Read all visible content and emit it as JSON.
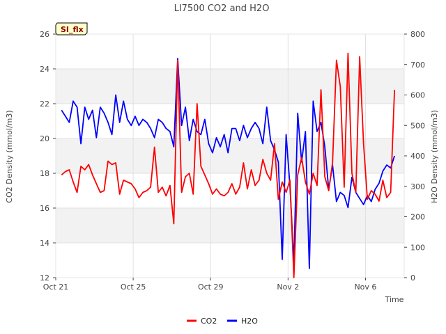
{
  "chart_data": {
    "type": "line",
    "title": "LI7500 CO2 and H2O",
    "badge": "SI_flx",
    "xlabel": "Time",
    "ylabel": "CO2 Density (mmol/m3)",
    "y2label": "H2O Density (mmol/m3)",
    "xlim": [
      0,
      18
    ],
    "x_tick_values": [
      0,
      4,
      8,
      12,
      16
    ],
    "x_tick_labels": [
      "Oct 21",
      "Oct 25",
      "Oct 29",
      "Nov 2",
      "Nov 6"
    ],
    "ylim": [
      12,
      26
    ],
    "y_ticks": [
      12,
      14,
      16,
      18,
      20,
      22,
      24,
      26
    ],
    "y2lim": [
      0,
      800
    ],
    "y2_ticks": [
      0,
      100,
      200,
      300,
      400,
      500,
      600,
      700,
      800
    ],
    "grid": true,
    "legend_position": "bottom-center",
    "series": [
      {
        "name": "CO2",
        "axis": "left",
        "color": "#ff0000",
        "x": [
          0.3,
          0.5,
          0.7,
          0.9,
          1.1,
          1.3,
          1.5,
          1.7,
          1.9,
          2.1,
          2.3,
          2.5,
          2.7,
          2.9,
          3.1,
          3.3,
          3.5,
          3.7,
          3.9,
          4.1,
          4.3,
          4.5,
          4.7,
          4.9,
          5.1,
          5.3,
          5.5,
          5.7,
          5.9,
          6.1,
          6.3,
          6.5,
          6.7,
          6.9,
          7.1,
          7.3,
          7.5,
          7.7,
          7.9,
          8.1,
          8.3,
          8.5,
          8.7,
          8.9,
          9.1,
          9.3,
          9.5,
          9.7,
          9.9,
          10.1,
          10.3,
          10.5,
          10.7,
          10.9,
          11.1,
          11.3,
          11.5,
          11.7,
          11.9,
          12.1,
          12.3,
          12.5,
          12.7,
          12.9,
          13.1,
          13.3,
          13.5,
          13.7,
          13.9,
          14.1,
          14.3,
          14.5,
          14.7,
          14.9,
          15.1,
          15.3,
          15.5,
          15.7,
          15.9,
          16.1,
          16.3,
          16.5,
          16.7,
          16.9,
          17.1,
          17.3,
          17.5
        ],
        "values": [
          17.9,
          18.1,
          18.2,
          17.5,
          16.9,
          18.4,
          18.2,
          18.5,
          17.9,
          17.4,
          16.9,
          17.0,
          18.7,
          18.5,
          18.6,
          16.8,
          17.6,
          17.5,
          17.4,
          17.1,
          16.6,
          16.9,
          17.0,
          17.2,
          19.5,
          16.9,
          17.2,
          16.7,
          17.3,
          15.1,
          24.5,
          16.9,
          17.8,
          18.0,
          16.8,
          22.0,
          18.4,
          17.9,
          17.4,
          16.8,
          17.1,
          16.8,
          16.7,
          16.9,
          17.4,
          16.8,
          17.2,
          18.6,
          17.1,
          18.2,
          17.3,
          17.6,
          18.8,
          18.0,
          17.6,
          19.7,
          16.5,
          17.5,
          16.9,
          17.6,
          12.0,
          17.9,
          18.9,
          17.5,
          16.8,
          18.0,
          17.3,
          22.8,
          17.8,
          17.0,
          18.6,
          24.5,
          23.0,
          17.2,
          24.9,
          18.0,
          16.9,
          24.7,
          19.7,
          16.5,
          17.0,
          16.8,
          16.4,
          17.6,
          16.6,
          16.9,
          22.8
        ]
      },
      {
        "name": "H2O",
        "axis": "right",
        "color": "#0000ff",
        "x": [
          0.3,
          0.5,
          0.7,
          0.9,
          1.1,
          1.3,
          1.5,
          1.7,
          1.9,
          2.1,
          2.3,
          2.5,
          2.7,
          2.9,
          3.1,
          3.3,
          3.5,
          3.7,
          3.9,
          4.1,
          4.3,
          4.5,
          4.7,
          4.9,
          5.1,
          5.3,
          5.5,
          5.7,
          5.9,
          6.1,
          6.3,
          6.5,
          6.7,
          6.9,
          7.1,
          7.3,
          7.5,
          7.7,
          7.9,
          8.1,
          8.3,
          8.5,
          8.7,
          8.9,
          9.1,
          9.3,
          9.5,
          9.7,
          9.9,
          10.1,
          10.3,
          10.5,
          10.7,
          10.9,
          11.1,
          11.3,
          11.5,
          11.7,
          11.9,
          12.1,
          12.3,
          12.5,
          12.7,
          12.9,
          13.1,
          13.3,
          13.5,
          13.7,
          13.9,
          14.1,
          14.3,
          14.5,
          14.7,
          14.9,
          15.1,
          15.3,
          15.5,
          15.7,
          15.9,
          16.1,
          16.3,
          16.5,
          16.7,
          16.9,
          17.1,
          17.3,
          17.5
        ],
        "values": [
          550,
          530,
          510,
          580,
          560,
          440,
          560,
          520,
          550,
          460,
          560,
          540,
          510,
          470,
          600,
          510,
          580,
          520,
          500,
          530,
          500,
          520,
          510,
          490,
          460,
          520,
          510,
          490,
          480,
          430,
          720,
          500,
          560,
          450,
          520,
          480,
          470,
          520,
          440,
          410,
          460,
          430,
          470,
          410,
          490,
          490,
          450,
          500,
          460,
          490,
          510,
          490,
          440,
          560,
          450,
          420,
          380,
          60,
          470,
          300,
          50,
          540,
          380,
          480,
          30,
          580,
          480,
          510,
          430,
          290,
          370,
          250,
          280,
          270,
          230,
          330,
          280,
          260,
          240,
          270,
          250,
          290,
          310,
          350,
          370,
          360,
          400
        ]
      }
    ]
  }
}
